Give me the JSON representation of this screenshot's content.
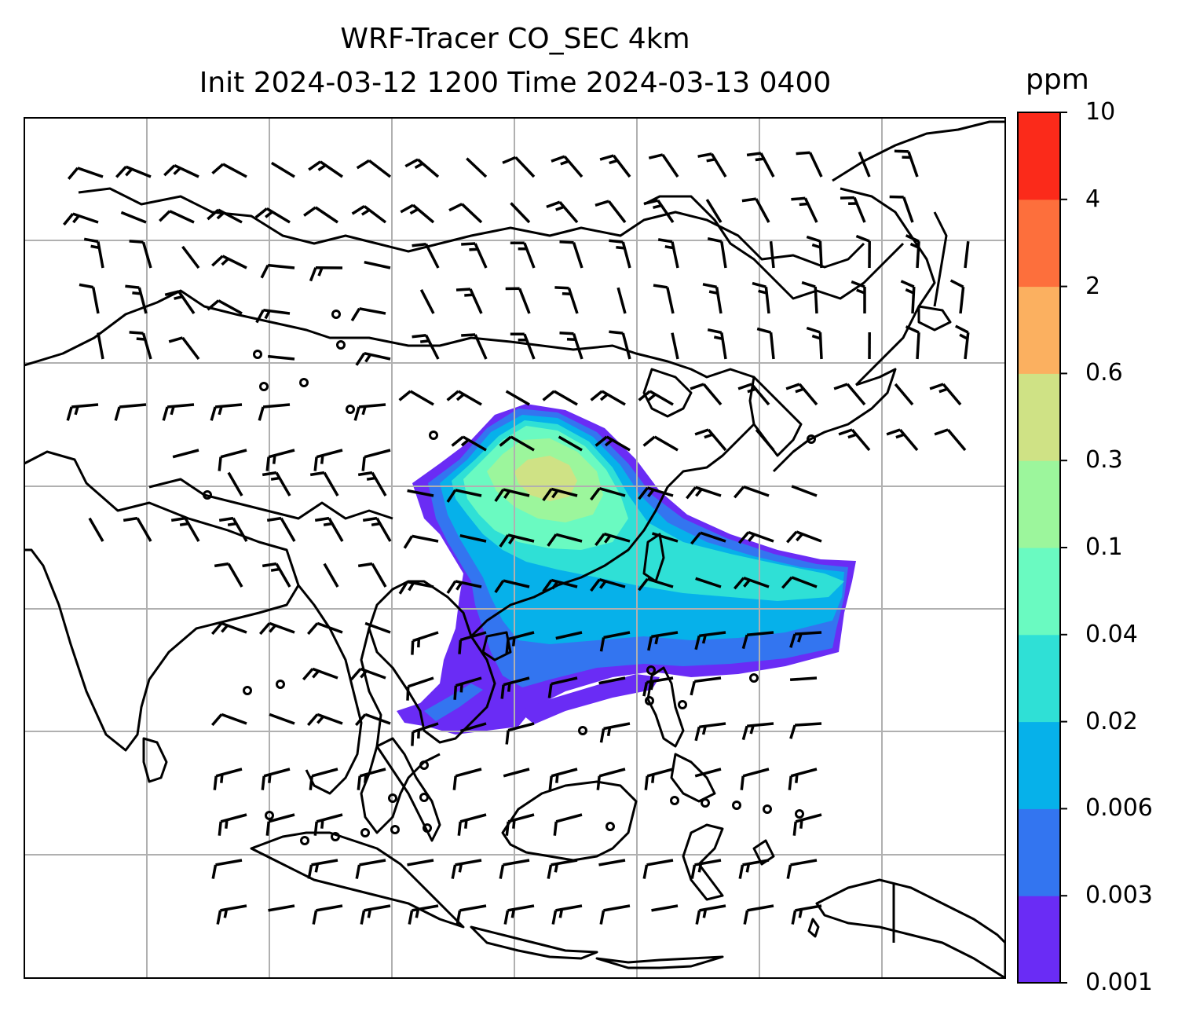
{
  "title": {
    "line1": "WRF-Tracer CO_SEC 4km",
    "line2": "Init 2024-03-12 1200 Time 2024-03-13 0400"
  },
  "colorbar": {
    "unit": "ppm",
    "ticks": [
      "0.001",
      "0.003",
      "0.006",
      "0.02",
      "0.04",
      "0.1",
      "0.3",
      "0.6",
      "2",
      "4",
      "10"
    ],
    "colors": [
      "#6a2cf5",
      "#3375f0",
      "#06b1ea",
      "#2fe0d6",
      "#6afac1",
      "#9cf69c",
      "#cfe285",
      "#fbb060",
      "#fd6f3c",
      "#fb2a1a"
    ]
  },
  "map": {
    "gridline_color": "#b0b0b0",
    "coastline_color": "#000000",
    "field": "CO_SEC tracer concentration",
    "wind_symbols": "wind barbs"
  }
}
